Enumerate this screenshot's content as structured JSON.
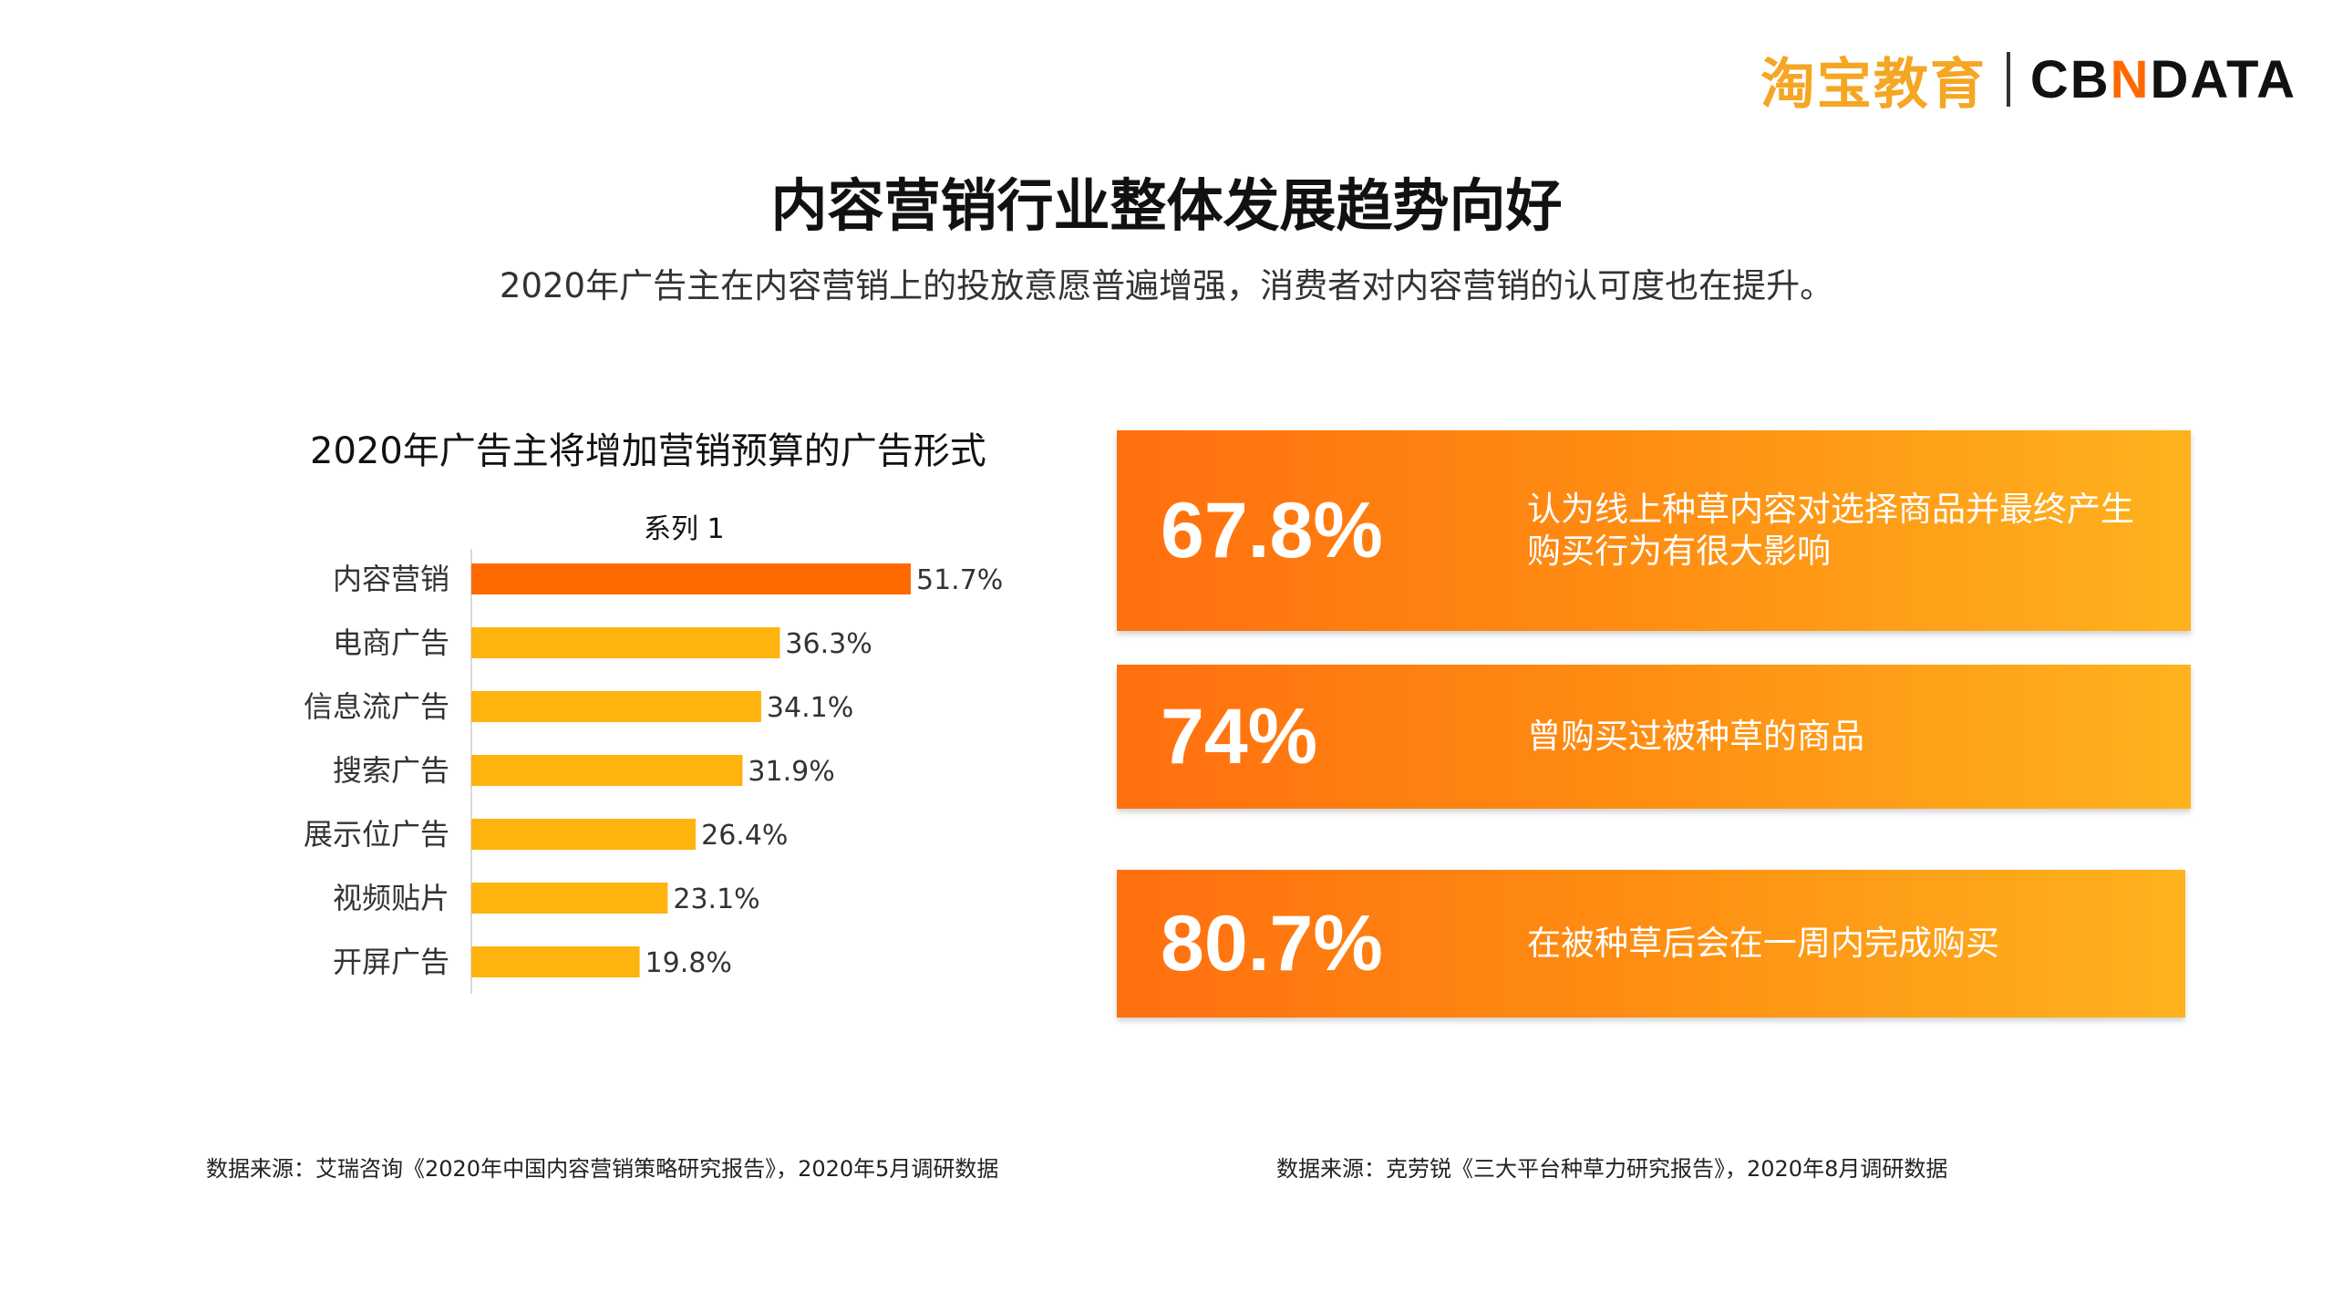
{
  "logo": {
    "taobao": "淘宝教育",
    "cbn_prefix": "CB",
    "cbn_x": "N",
    "cbn_suffix": "DATA"
  },
  "title": "内容营销行业整体发展趋势向好",
  "subtitle": "2020年广告主在内容营销上的投放意愿普遍增强，消费者对内容营销的认可度也在提升。",
  "chart_data": {
    "type": "bar",
    "orientation": "horizontal",
    "title": "2020年广告主将增加营销预算的广告形式",
    "series": [
      {
        "name": "系列 1",
        "values": [
          51.7,
          36.3,
          34.1,
          31.9,
          26.4,
          23.1,
          19.8
        ]
      }
    ],
    "categories": [
      "内容营销",
      "电商广告",
      "信息流广告",
      "搜索广告",
      "展示位广告",
      "视频贴片",
      "开屏广告"
    ],
    "data_labels": [
      "51.7%",
      "36.3%",
      "34.1%",
      "31.9%",
      "26.4%",
      "23.1%",
      "19.8%"
    ],
    "highlight_index": 0,
    "colors": {
      "highlight": "#ff6a00",
      "default": "#ffb30f"
    },
    "xlim": [
      0,
      51.7
    ]
  },
  "cards": [
    {
      "pct": "67.8%",
      "desc": "认为线上种草内容对选择商品并最终产生购买行为有很大影响"
    },
    {
      "pct": "74%",
      "desc": "曾购买过被种草的商品"
    },
    {
      "pct": "80.7%",
      "desc": "在被种草后会在一周内完成购买"
    }
  ],
  "sources": {
    "left": "数据来源：艾瑞咨询《2020年中国内容营销策略研究报告》，2020年5月调研数据",
    "right": "数据来源：克劳锐《三大平台种草力研究报告》，2020年8月调研数据"
  }
}
